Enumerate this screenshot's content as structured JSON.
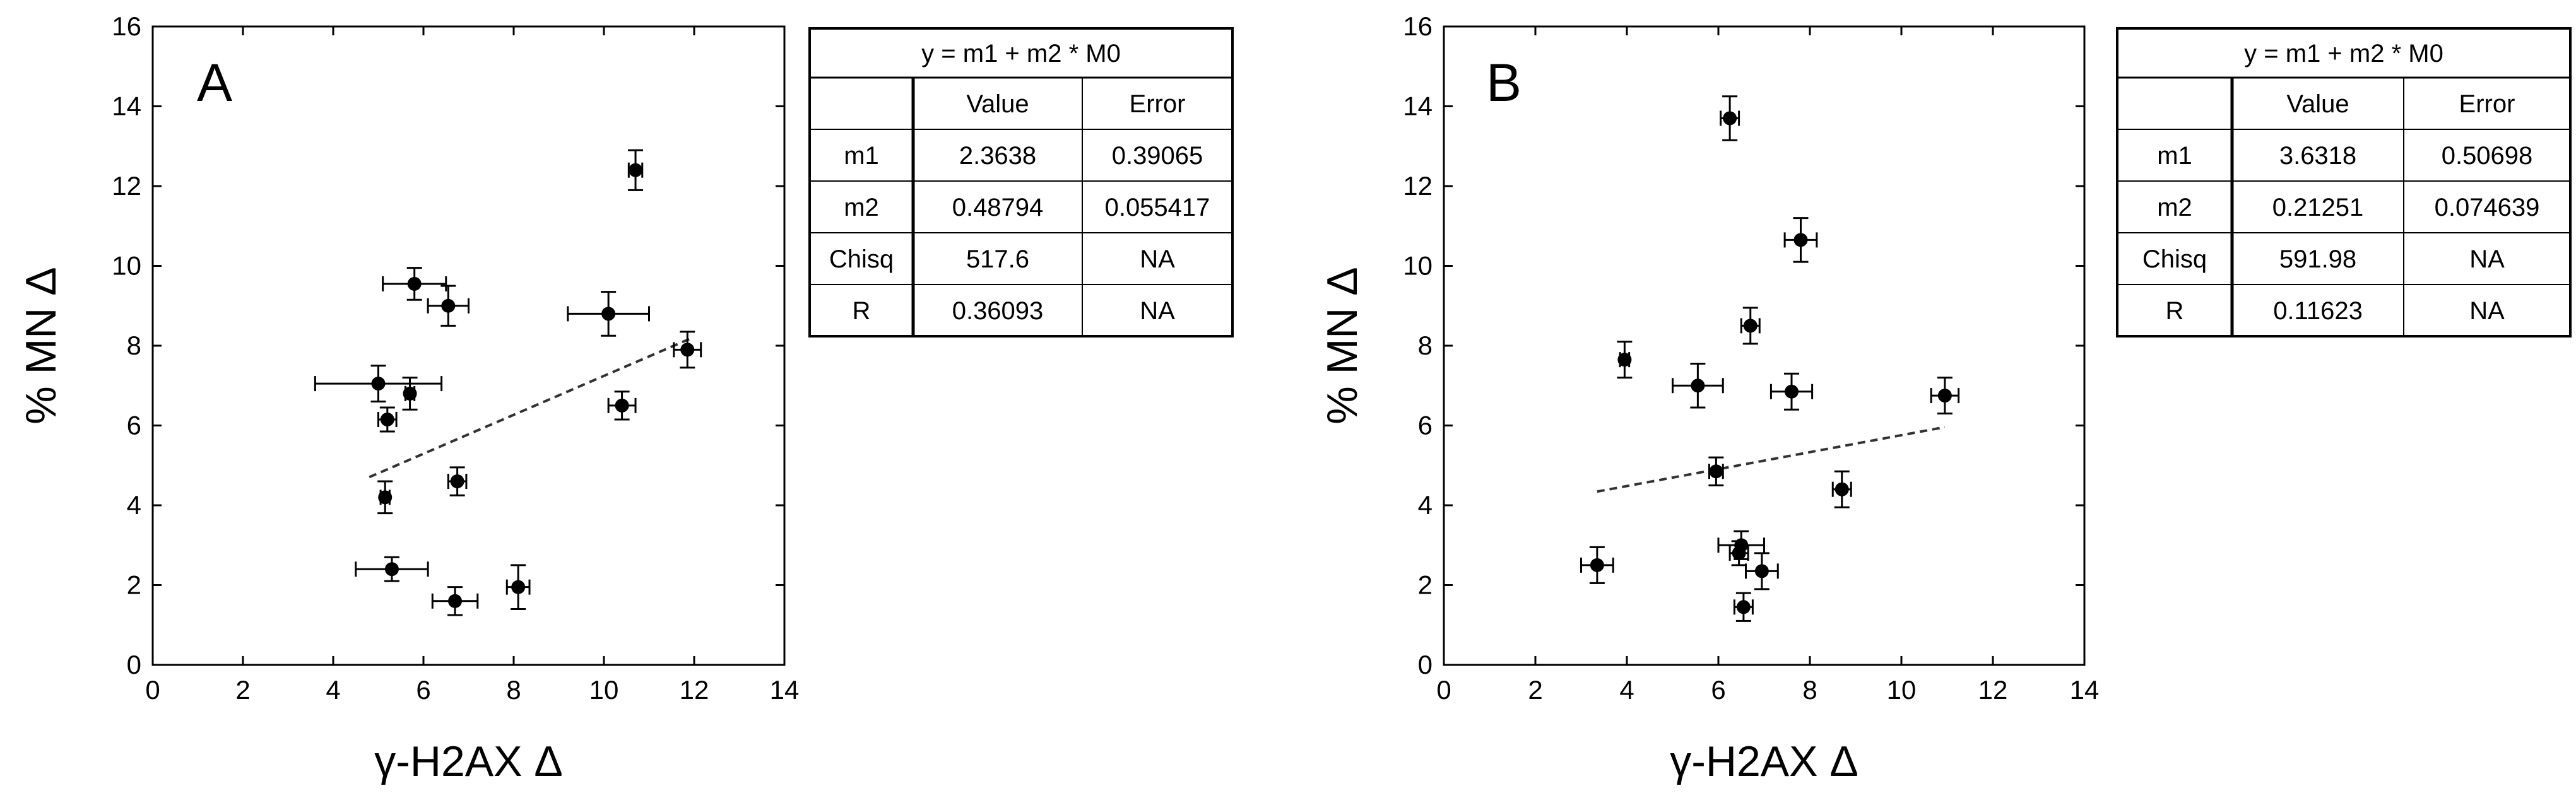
{
  "chart_data": [
    {
      "type": "scatter",
      "panel_label": "A",
      "xlabel": "γ-H2AX Δ",
      "ylabel": "% MN Δ",
      "xlim": [
        0,
        14
      ],
      "ylim": [
        0,
        16
      ],
      "x_ticks": [
        "0",
        "2",
        "4",
        "6",
        "8",
        "10",
        "12",
        "14"
      ],
      "y_ticks": [
        "0",
        "2",
        "4",
        "6",
        "8",
        "10",
        "12",
        "14",
        "16"
      ],
      "grid": false,
      "points": [
        {
          "x": 5.0,
          "y": 7.05,
          "xerr": 1.4,
          "yerr": 0.45
        },
        {
          "x": 5.2,
          "y": 6.15,
          "xerr": 0.2,
          "yerr": 0.3
        },
        {
          "x": 5.15,
          "y": 4.2,
          "xerr": 0.1,
          "yerr": 0.4
        },
        {
          "x": 5.3,
          "y": 2.4,
          "xerr": 0.8,
          "yerr": 0.3
        },
        {
          "x": 5.7,
          "y": 6.8,
          "xerr": 0.1,
          "yerr": 0.4
        },
        {
          "x": 5.8,
          "y": 9.55,
          "xerr": 0.7,
          "yerr": 0.4
        },
        {
          "x": 6.55,
          "y": 9.0,
          "xerr": 0.45,
          "yerr": 0.5
        },
        {
          "x": 6.7,
          "y": 1.6,
          "xerr": 0.5,
          "yerr": 0.35
        },
        {
          "x": 6.75,
          "y": 4.6,
          "xerr": 0.2,
          "yerr": 0.35
        },
        {
          "x": 8.1,
          "y": 1.95,
          "xerr": 0.25,
          "yerr": 0.55
        },
        {
          "x": 10.1,
          "y": 8.8,
          "xerr": 0.9,
          "yerr": 0.55
        },
        {
          "x": 10.4,
          "y": 6.5,
          "xerr": 0.3,
          "yerr": 0.35
        },
        {
          "x": 10.7,
          "y": 12.4,
          "xerr": 0.15,
          "yerr": 0.5
        },
        {
          "x": 11.85,
          "y": 7.9,
          "xerr": 0.3,
          "yerr": 0.45
        }
      ],
      "fit_line": {
        "x_start": 4.8,
        "x_end": 11.95,
        "m1": 2.3638,
        "m2": 0.48794
      },
      "fit_table": {
        "equation": "y = m1 + m2 * M0",
        "headers": [
          "",
          "Value",
          "Error"
        ],
        "rows": [
          [
            "m1",
            "2.3638",
            "0.39065"
          ],
          [
            "m2",
            "0.48794",
            "0.055417"
          ],
          [
            "Chisq",
            "517.6",
            "NA"
          ],
          [
            "R",
            "0.36093",
            "NA"
          ]
        ]
      }
    },
    {
      "type": "scatter",
      "panel_label": "B",
      "xlabel": "γ-H2AX Δ",
      "ylabel": "% MN Δ",
      "xlim": [
        0,
        14
      ],
      "ylim": [
        0,
        16
      ],
      "x_ticks": [
        "0",
        "2",
        "4",
        "6",
        "8",
        "10",
        "12",
        "14"
      ],
      "y_ticks": [
        "0",
        "2",
        "4",
        "6",
        "8",
        "10",
        "12",
        "14",
        "16"
      ],
      "grid": false,
      "points": [
        {
          "x": 3.35,
          "y": 2.5,
          "xerr": 0.35,
          "yerr": 0.45
        },
        {
          "x": 3.95,
          "y": 7.65,
          "xerr": 0.1,
          "yerr": 0.45
        },
        {
          "x": 5.55,
          "y": 7.0,
          "xerr": 0.55,
          "yerr": 0.55
        },
        {
          "x": 5.95,
          "y": 4.85,
          "xerr": 0.15,
          "yerr": 0.35
        },
        {
          "x": 6.25,
          "y": 13.7,
          "xerr": 0.2,
          "yerr": 0.55
        },
        {
          "x": 6.5,
          "y": 3.0,
          "xerr": 0.5,
          "yerr": 0.35
        },
        {
          "x": 6.45,
          "y": 2.8,
          "xerr": 0.2,
          "yerr": 0.3
        },
        {
          "x": 6.55,
          "y": 1.45,
          "xerr": 0.2,
          "yerr": 0.35
        },
        {
          "x": 6.7,
          "y": 8.5,
          "xerr": 0.2,
          "yerr": 0.45
        },
        {
          "x": 6.95,
          "y": 2.35,
          "xerr": 0.35,
          "yerr": 0.45
        },
        {
          "x": 7.6,
          "y": 6.85,
          "xerr": 0.45,
          "yerr": 0.45
        },
        {
          "x": 7.8,
          "y": 10.65,
          "xerr": 0.35,
          "yerr": 0.55
        },
        {
          "x": 8.7,
          "y": 4.4,
          "xerr": 0.2,
          "yerr": 0.45
        },
        {
          "x": 10.95,
          "y": 6.75,
          "xerr": 0.3,
          "yerr": 0.45
        }
      ],
      "fit_line": {
        "x_start": 3.35,
        "x_end": 10.95,
        "m1": 3.6318,
        "m2": 0.21251
      },
      "fit_table": {
        "equation": "y = m1 + m2 * M0",
        "headers": [
          "",
          "Value",
          "Error"
        ],
        "rows": [
          [
            "m1",
            "3.6318",
            "0.50698"
          ],
          [
            "m2",
            "0.21251",
            "0.074639"
          ],
          [
            "Chisq",
            "591.98",
            "NA"
          ],
          [
            "R",
            "0.11623",
            "NA"
          ]
        ]
      }
    }
  ]
}
